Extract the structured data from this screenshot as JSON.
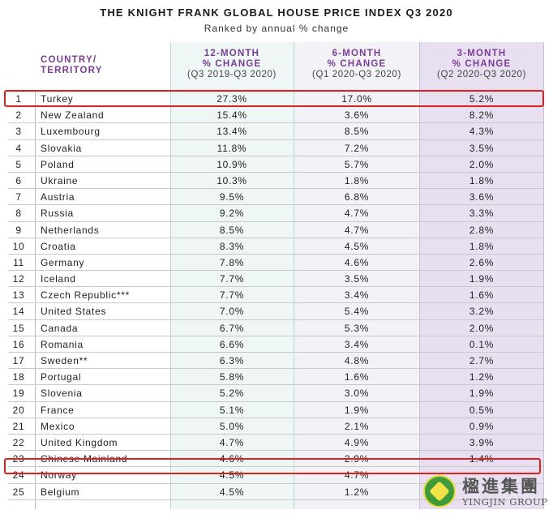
{
  "title": "THE KNIGHT FRANK GLOBAL HOUSE PRICE INDEX Q3 2020",
  "subtitle": "Ranked by annual % change",
  "headers": {
    "country_line1": "COUNTRY/",
    "country_line2": "TERRITORY",
    "m12_line1": "12-MONTH",
    "m12_line2": "% CHANGE",
    "m12_line3": "(Q3 2019-Q3 2020)",
    "m6_line1": "6-MONTH",
    "m6_line2": "% CHANGE",
    "m6_line3": "(Q1 2020-Q3 2020)",
    "m3_line1": "3-MONTH",
    "m3_line2": "% CHANGE",
    "m3_line3": "(Q2 2020-Q3 2020)"
  },
  "rows": [
    {
      "rank": "1",
      "country": "Turkey",
      "m12": "27.3%",
      "m6": "17.0%",
      "m3": "5.2%"
    },
    {
      "rank": "2",
      "country": "New Zealand",
      "m12": "15.4%",
      "m6": "3.6%",
      "m3": "8.2%"
    },
    {
      "rank": "3",
      "country": "Luxembourg",
      "m12": "13.4%",
      "m6": "8.5%",
      "m3": "4.3%"
    },
    {
      "rank": "4",
      "country": "Slovakia",
      "m12": "11.8%",
      "m6": "7.2%",
      "m3": "3.5%"
    },
    {
      "rank": "5",
      "country": "Poland",
      "m12": "10.9%",
      "m6": "5.7%",
      "m3": "2.0%"
    },
    {
      "rank": "6",
      "country": "Ukraine",
      "m12": "10.3%",
      "m6": "1.8%",
      "m3": "1.8%"
    },
    {
      "rank": "7",
      "country": "Austria",
      "m12": "9.5%",
      "m6": "6.8%",
      "m3": "3.6%"
    },
    {
      "rank": "8",
      "country": "Russia",
      "m12": "9.2%",
      "m6": "4.7%",
      "m3": "3.3%"
    },
    {
      "rank": "9",
      "country": "Netherlands",
      "m12": "8.5%",
      "m6": "4.7%",
      "m3": "2.8%"
    },
    {
      "rank": "10",
      "country": "Croatia",
      "m12": "8.3%",
      "m6": "4.5%",
      "m3": "1.8%"
    },
    {
      "rank": "11",
      "country": "Germany",
      "m12": "7.8%",
      "m6": "4.6%",
      "m3": "2.6%"
    },
    {
      "rank": "12",
      "country": "Iceland",
      "m12": "7.7%",
      "m6": "3.5%",
      "m3": "1.9%"
    },
    {
      "rank": "13",
      "country": "Czech Republic***",
      "m12": "7.7%",
      "m6": "3.4%",
      "m3": "1.6%"
    },
    {
      "rank": "14",
      "country": "United States",
      "m12": "7.0%",
      "m6": "5.4%",
      "m3": "3.2%"
    },
    {
      "rank": "15",
      "country": "Canada",
      "m12": "6.7%",
      "m6": "5.3%",
      "m3": "2.0%"
    },
    {
      "rank": "16",
      "country": "Romania",
      "m12": "6.6%",
      "m6": "3.4%",
      "m3": "0.1%"
    },
    {
      "rank": "17",
      "country": "Sweden**",
      "m12": "6.3%",
      "m6": "4.8%",
      "m3": "2.7%"
    },
    {
      "rank": "18",
      "country": "Portugal",
      "m12": "5.8%",
      "m6": "1.6%",
      "m3": "1.2%"
    },
    {
      "rank": "19",
      "country": "Slovenia",
      "m12": "5.2%",
      "m6": "3.0%",
      "m3": "1.9%"
    },
    {
      "rank": "20",
      "country": "France",
      "m12": "5.1%",
      "m6": "1.9%",
      "m3": "0.5%"
    },
    {
      "rank": "21",
      "country": "Mexico",
      "m12": "5.0%",
      "m6": "2.1%",
      "m3": "0.9%"
    },
    {
      "rank": "22",
      "country": "United Kingdom",
      "m12": "4.7%",
      "m6": "4.9%",
      "m3": "3.9%"
    },
    {
      "rank": "23",
      "country": "Chinese Mainland",
      "m12": "4.6%",
      "m6": "2.9%",
      "m3": "1.4%"
    },
    {
      "rank": "24",
      "country": "Norway",
      "m12": "4.5%",
      "m6": "4.7%",
      "m3": ""
    },
    {
      "rank": "25",
      "country": "Belgium",
      "m12": "4.5%",
      "m6": "1.2%",
      "m3": ""
    }
  ],
  "highlighted_rows": [
    "1",
    "23"
  ],
  "colors": {
    "header_accent": "#7a3d96",
    "highlight": "#e0201c",
    "band_12m": "#eef7f5",
    "band_6m": "#f3f2f7",
    "band_3m": "#e8e0f1"
  },
  "logo": {
    "name_cn": "楹進集團",
    "name_en": "YINGJIN GROUP",
    "icon": "yingjin-logo-icon"
  }
}
